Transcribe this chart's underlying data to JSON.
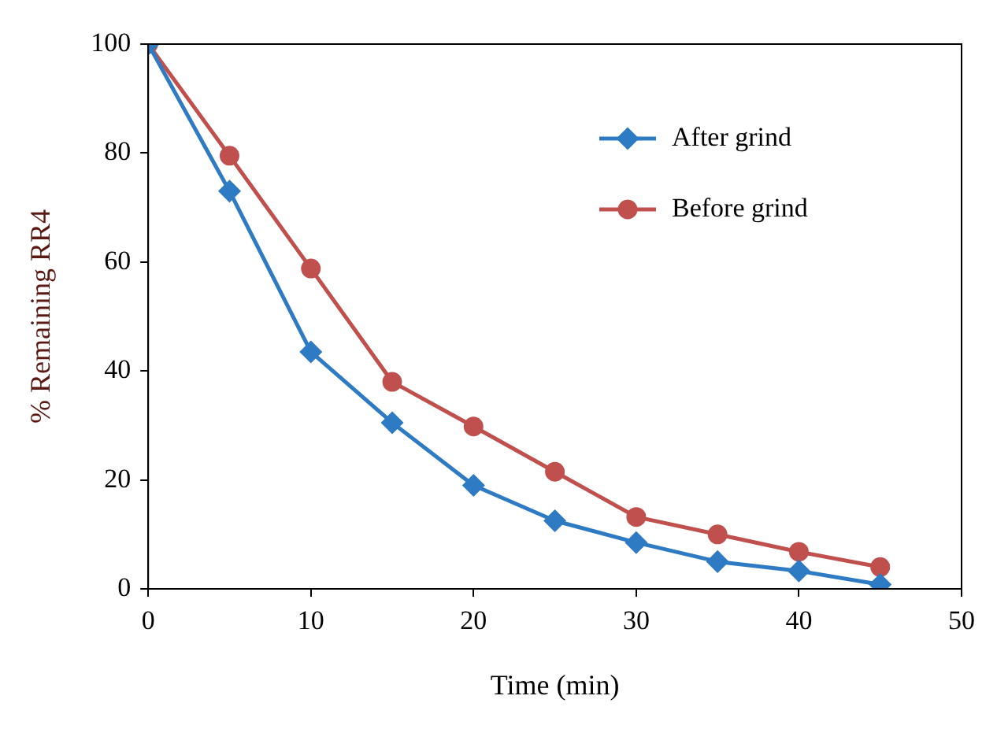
{
  "chart_data": {
    "type": "line",
    "xlabel": "Time (min)",
    "ylabel": "% Remaining RR4",
    "x": [
      0,
      5,
      10,
      15,
      20,
      25,
      30,
      35,
      40,
      45
    ],
    "series": [
      {
        "name": "After grind",
        "color": "#2e7bc4",
        "marker": "diamond",
        "values": [
          100,
          73,
          43.5,
          30.5,
          19,
          12.5,
          8.5,
          5,
          3.3,
          0.8
        ]
      },
      {
        "name": "Before grind",
        "color": "#c0504d",
        "marker": "circle",
        "values": [
          100,
          79.5,
          58.8,
          38,
          29.8,
          21.5,
          13.2,
          10,
          6.8,
          4
        ]
      }
    ],
    "xlim": [
      0,
      50
    ],
    "xticks": [
      0,
      10,
      20,
      30,
      40,
      50
    ],
    "ylim": [
      0,
      100
    ],
    "yticks": [
      0,
      20,
      40,
      60,
      80,
      100
    ],
    "grid": false,
    "legend": "top right"
  }
}
